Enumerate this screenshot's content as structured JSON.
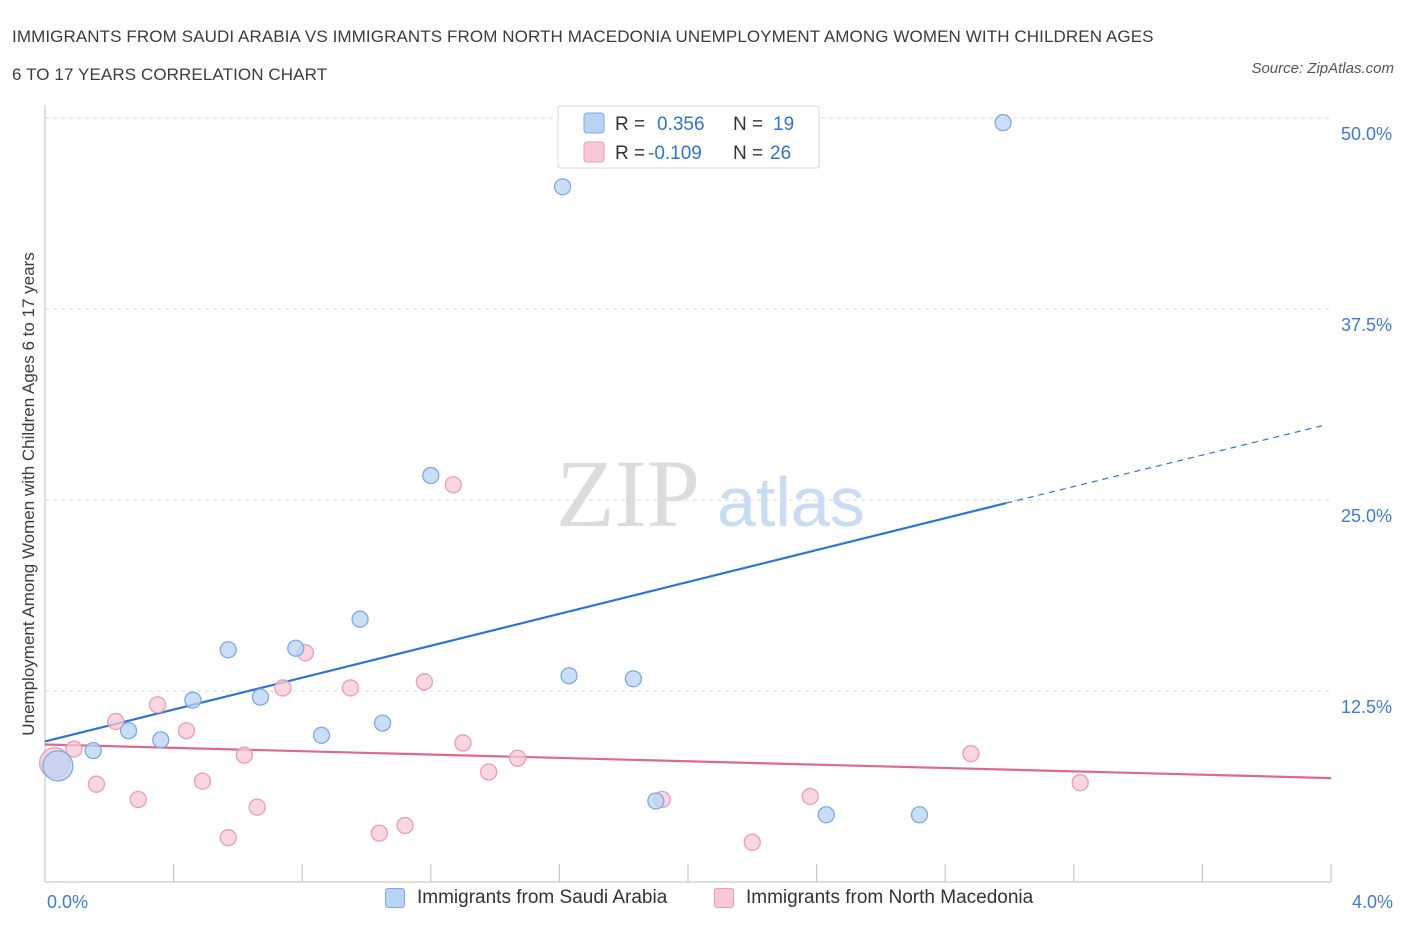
{
  "header": {
    "title": "IMMIGRANTS FROM SAUDI ARABIA VS IMMIGRANTS FROM NORTH MACEDONIA UNEMPLOYMENT AMONG WOMEN WITH CHILDREN AGES 6 TO 17 YEARS CORRELATION CHART",
    "source": "Source: ZipAtlas.com"
  },
  "watermark": {
    "zip": "ZIP",
    "atlas": "atlas"
  },
  "legend": {
    "rows": [
      {
        "r_label": "R =",
        "r_value": "0.356",
        "n_label": "N =",
        "n_value": "19"
      },
      {
        "r_label": "R =",
        "r_value": "-0.109",
        "n_label": "N =",
        "n_value": "26"
      }
    ]
  },
  "colors": {
    "blue_fill": "#b9d3f5",
    "blue_stroke": "#7fa9e0",
    "blue_line": "#2e74d0",
    "pink_fill": "#f8c8d6",
    "pink_stroke": "#ec9bb4",
    "pink_line": "#e0678f",
    "grid": "#d7d7d7",
    "axis_text": "#3f7ad6"
  },
  "chart_data": {
    "type": "scatter",
    "title": "IMMIGRANTS FROM SAUDI ARABIA VS IMMIGRANTS FROM NORTH MACEDONIA UNEMPLOYMENT AMONG WOMEN WITH CHILDREN AGES 6 TO 17 YEARS CORRELATION CHART",
    "xlabel": "",
    "ylabel": "Unemployment Among Women with Children Ages 6 to 17 years",
    "xlim": [
      0,
      4
    ],
    "ylim": [
      0,
      50
    ],
    "x_tick_labels": [
      "0.0%",
      "4.0%"
    ],
    "y_ticks": [
      12.5,
      25,
      37.5,
      50
    ],
    "y_tick_labels": [
      "12.5%",
      "25.0%",
      "37.5%",
      "50.0%"
    ],
    "grid": true,
    "legend_position": "top-center",
    "series": [
      {
        "name": "Immigrants from Saudi Arabia",
        "color": "#2e74d0",
        "points": [
          {
            "x": 0.04,
            "y": 7.6,
            "big": true
          },
          {
            "x": 0.15,
            "y": 8.6
          },
          {
            "x": 0.26,
            "y": 9.9
          },
          {
            "x": 0.36,
            "y": 9.3
          },
          {
            "x": 0.46,
            "y": 11.9
          },
          {
            "x": 0.57,
            "y": 15.2
          },
          {
            "x": 0.67,
            "y": 12.1
          },
          {
            "x": 0.78,
            "y": 15.3
          },
          {
            "x": 0.86,
            "y": 9.6
          },
          {
            "x": 0.98,
            "y": 17.2
          },
          {
            "x": 1.05,
            "y": 10.4
          },
          {
            "x": 1.2,
            "y": 26.6
          },
          {
            "x": 1.63,
            "y": 13.5
          },
          {
            "x": 1.61,
            "y": 45.5
          },
          {
            "x": 1.83,
            "y": 13.3
          },
          {
            "x": 1.9,
            "y": 5.3
          },
          {
            "x": 2.43,
            "y": 4.4
          },
          {
            "x": 2.72,
            "y": 4.4
          },
          {
            "x": 2.98,
            "y": 49.7
          }
        ],
        "trend": {
          "x0": 0.0,
          "y0": 9.2,
          "x1": 2.99,
          "y1": 24.8,
          "dash_x1": 3.98,
          "dash_y1": 29.9
        }
      },
      {
        "name": "Immigrants from North Macedonia",
        "color": "#e0678f",
        "points": [
          {
            "x": 0.03,
            "y": 7.8,
            "big": true
          },
          {
            "x": 0.09,
            "y": 8.7
          },
          {
            "x": 0.16,
            "y": 6.4
          },
          {
            "x": 0.22,
            "y": 10.5
          },
          {
            "x": 0.29,
            "y": 5.4
          },
          {
            "x": 0.35,
            "y": 11.6
          },
          {
            "x": 0.44,
            "y": 9.9
          },
          {
            "x": 0.49,
            "y": 6.6
          },
          {
            "x": 0.57,
            "y": 2.9
          },
          {
            "x": 0.62,
            "y": 8.3
          },
          {
            "x": 0.66,
            "y": 4.9
          },
          {
            "x": 0.74,
            "y": 12.7
          },
          {
            "x": 0.81,
            "y": 15.0
          },
          {
            "x": 0.95,
            "y": 12.7
          },
          {
            "x": 1.04,
            "y": 3.2
          },
          {
            "x": 1.12,
            "y": 3.7
          },
          {
            "x": 1.18,
            "y": 13.1
          },
          {
            "x": 1.27,
            "y": 26.0
          },
          {
            "x": 1.3,
            "y": 9.1
          },
          {
            "x": 1.38,
            "y": 7.2
          },
          {
            "x": 1.47,
            "y": 8.1
          },
          {
            "x": 1.92,
            "y": 5.4
          },
          {
            "x": 2.2,
            "y": 2.6
          },
          {
            "x": 2.38,
            "y": 5.6
          },
          {
            "x": 2.88,
            "y": 8.4
          },
          {
            "x": 3.22,
            "y": 6.5
          }
        ],
        "trend": {
          "x0": 0.0,
          "y0": 9.0,
          "x1": 4.0,
          "y1": 6.8
        }
      }
    ]
  }
}
